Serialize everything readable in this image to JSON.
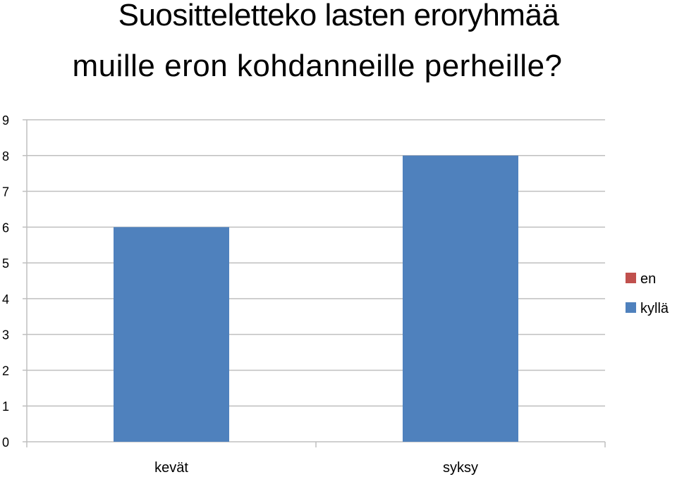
{
  "chart_data": {
    "type": "bar",
    "title_lines": [
      "Suositteletteko lasten eroryhmää",
      "muille eron kohdanneille perheille?"
    ],
    "categories": [
      "kevät",
      "syksy"
    ],
    "series": [
      {
        "name": "en",
        "color": "#c0504d",
        "values": [
          0,
          0
        ]
      },
      {
        "name": "kyllä",
        "color": "#4f81bd",
        "values": [
          6,
          8
        ]
      }
    ],
    "ylim": [
      0,
      9
    ],
    "yticks": [
      "0",
      "1",
      "2",
      "3",
      "4",
      "5",
      "6",
      "7",
      "8",
      "9"
    ],
    "grid": true,
    "legend": "right"
  }
}
